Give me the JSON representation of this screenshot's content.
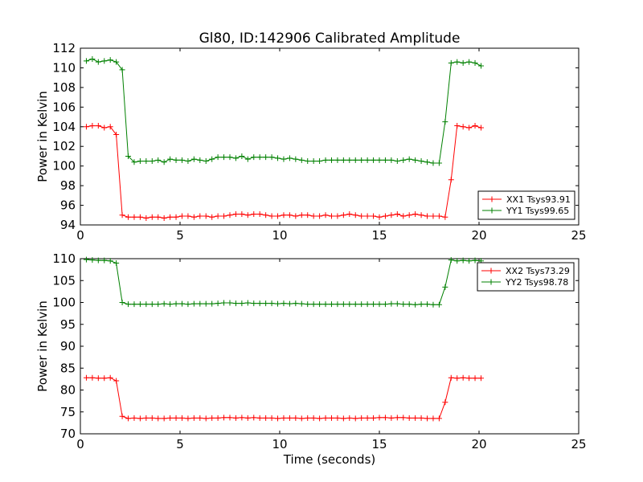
{
  "title": "Gl80, ID:142906 Calibrated Amplitude",
  "colors": {
    "red": "#ff0000",
    "green": "#008000"
  },
  "chart_data": [
    {
      "type": "line",
      "title": "Gl80, ID:142906 Calibrated Amplitude",
      "xlabel": "",
      "ylabel": "Power in Kelvin",
      "xlim": [
        0,
        25
      ],
      "ylim": [
        94,
        112
      ],
      "xticks": [
        "0",
        "5",
        "10",
        "15",
        "20",
        "25"
      ],
      "yticks": [
        "94",
        "96",
        "98",
        "100",
        "102",
        "104",
        "106",
        "108",
        "110",
        "112"
      ],
      "grid": false,
      "legend_position": "lower-right",
      "series": [
        {
          "name": "XX1 Tsys93.91",
          "color": "#ff0000",
          "x": [
            0.3,
            0.6,
            0.9,
            1.2,
            1.5,
            1.8,
            2.1,
            2.4,
            2.7,
            3.0,
            3.3,
            3.6,
            3.9,
            4.2,
            4.5,
            4.8,
            5.1,
            5.4,
            5.7,
            6.0,
            6.3,
            6.6,
            6.9,
            7.2,
            7.5,
            7.8,
            8.1,
            8.4,
            8.7,
            9.0,
            9.3,
            9.6,
            9.9,
            10.2,
            10.5,
            10.8,
            11.1,
            11.4,
            11.7,
            12.0,
            12.3,
            12.6,
            12.9,
            13.2,
            13.5,
            13.8,
            14.1,
            14.4,
            14.7,
            15.0,
            15.3,
            15.6,
            15.9,
            16.2,
            16.5,
            16.8,
            17.1,
            17.4,
            17.7,
            18.0,
            18.3,
            18.6,
            18.9,
            19.2,
            19.5,
            19.8,
            20.1
          ],
          "y": [
            104.0,
            104.1,
            104.1,
            103.9,
            104.0,
            103.2,
            95.0,
            94.8,
            94.8,
            94.8,
            94.7,
            94.8,
            94.8,
            94.7,
            94.8,
            94.8,
            94.9,
            94.9,
            94.8,
            94.9,
            94.9,
            94.8,
            94.9,
            94.9,
            95.0,
            95.1,
            95.1,
            95.0,
            95.1,
            95.1,
            95.0,
            94.9,
            94.9,
            95.0,
            95.0,
            94.9,
            95.0,
            95.0,
            94.9,
            94.9,
            95.0,
            94.9,
            94.9,
            95.0,
            95.1,
            95.0,
            94.9,
            94.9,
            94.9,
            94.8,
            94.9,
            95.0,
            95.1,
            94.9,
            95.0,
            95.1,
            95.0,
            94.9,
            94.9,
            94.9,
            94.8,
            98.6,
            104.1,
            104.0,
            103.9,
            104.1,
            103.9
          ]
        },
        {
          "name": "YY1 Tsys99.65",
          "color": "#008000",
          "x": [
            0.3,
            0.6,
            0.9,
            1.2,
            1.5,
            1.8,
            2.1,
            2.4,
            2.7,
            3.0,
            3.3,
            3.6,
            3.9,
            4.2,
            4.5,
            4.8,
            5.1,
            5.4,
            5.7,
            6.0,
            6.3,
            6.6,
            6.9,
            7.2,
            7.5,
            7.8,
            8.1,
            8.4,
            8.7,
            9.0,
            9.3,
            9.6,
            9.9,
            10.2,
            10.5,
            10.8,
            11.1,
            11.4,
            11.7,
            12.0,
            12.3,
            12.6,
            12.9,
            13.2,
            13.5,
            13.8,
            14.1,
            14.4,
            14.7,
            15.0,
            15.3,
            15.6,
            15.9,
            16.2,
            16.5,
            16.8,
            17.1,
            17.4,
            17.7,
            18.0,
            18.3,
            18.6,
            18.9,
            19.2,
            19.5,
            19.8,
            20.1
          ],
          "y": [
            110.7,
            110.9,
            110.6,
            110.7,
            110.8,
            110.6,
            109.8,
            101.0,
            100.4,
            100.5,
            100.5,
            100.5,
            100.6,
            100.4,
            100.7,
            100.6,
            100.6,
            100.5,
            100.7,
            100.6,
            100.5,
            100.7,
            100.9,
            100.9,
            100.9,
            100.8,
            101.0,
            100.7,
            100.9,
            100.9,
            100.9,
            100.9,
            100.8,
            100.7,
            100.8,
            100.7,
            100.6,
            100.5,
            100.5,
            100.5,
            100.6,
            100.6,
            100.6,
            100.6,
            100.6,
            100.6,
            100.6,
            100.6,
            100.6,
            100.6,
            100.6,
            100.6,
            100.5,
            100.6,
            100.7,
            100.6,
            100.5,
            100.4,
            100.3,
            100.3,
            104.5,
            110.5,
            110.6,
            110.5,
            110.6,
            110.5,
            110.2
          ]
        }
      ]
    },
    {
      "type": "line",
      "title": "",
      "xlabel": "Time (seconds)",
      "ylabel": "Power in Kelvin",
      "xlim": [
        0,
        25
      ],
      "ylim": [
        70,
        110
      ],
      "xticks": [
        "0",
        "5",
        "10",
        "15",
        "20",
        "25"
      ],
      "yticks": [
        "70",
        "75",
        "80",
        "85",
        "90",
        "95",
        "100",
        "105",
        "110"
      ],
      "grid": false,
      "legend_position": "upper-right",
      "series": [
        {
          "name": "XX2 Tsys73.29",
          "color": "#ff0000",
          "x": [
            0.3,
            0.6,
            0.9,
            1.2,
            1.5,
            1.8,
            2.1,
            2.4,
            2.7,
            3.0,
            3.3,
            3.6,
            3.9,
            4.2,
            4.5,
            4.8,
            5.1,
            5.4,
            5.7,
            6.0,
            6.3,
            6.6,
            6.9,
            7.2,
            7.5,
            7.8,
            8.1,
            8.4,
            8.7,
            9.0,
            9.3,
            9.6,
            9.9,
            10.2,
            10.5,
            10.8,
            11.1,
            11.4,
            11.7,
            12.0,
            12.3,
            12.6,
            12.9,
            13.2,
            13.5,
            13.8,
            14.1,
            14.4,
            14.7,
            15.0,
            15.3,
            15.6,
            15.9,
            16.2,
            16.5,
            16.8,
            17.1,
            17.4,
            17.7,
            18.0,
            18.3,
            18.6,
            18.9,
            19.2,
            19.5,
            19.8,
            20.1
          ],
          "y": [
            82.8,
            82.8,
            82.7,
            82.7,
            82.8,
            82.1,
            74.0,
            73.5,
            73.6,
            73.5,
            73.6,
            73.6,
            73.5,
            73.5,
            73.6,
            73.6,
            73.6,
            73.5,
            73.6,
            73.6,
            73.5,
            73.6,
            73.6,
            73.7,
            73.7,
            73.6,
            73.7,
            73.6,
            73.7,
            73.6,
            73.6,
            73.6,
            73.5,
            73.6,
            73.6,
            73.6,
            73.5,
            73.6,
            73.6,
            73.5,
            73.6,
            73.6,
            73.6,
            73.5,
            73.6,
            73.5,
            73.6,
            73.6,
            73.6,
            73.7,
            73.7,
            73.6,
            73.7,
            73.7,
            73.6,
            73.6,
            73.6,
            73.5,
            73.5,
            73.5,
            77.2,
            82.8,
            82.7,
            82.8,
            82.7,
            82.7,
            82.7
          ]
        },
        {
          "name": "YY2 Tsys98.78",
          "color": "#008000",
          "x": [
            0.3,
            0.6,
            0.9,
            1.2,
            1.5,
            1.8,
            2.1,
            2.4,
            2.7,
            3.0,
            3.3,
            3.6,
            3.9,
            4.2,
            4.5,
            4.8,
            5.1,
            5.4,
            5.7,
            6.0,
            6.3,
            6.6,
            6.9,
            7.2,
            7.5,
            7.8,
            8.1,
            8.4,
            8.7,
            9.0,
            9.3,
            9.6,
            9.9,
            10.2,
            10.5,
            10.8,
            11.1,
            11.4,
            11.7,
            12.0,
            12.3,
            12.6,
            12.9,
            13.2,
            13.5,
            13.8,
            14.1,
            14.4,
            14.7,
            15.0,
            15.3,
            15.6,
            15.9,
            16.2,
            16.5,
            16.8,
            17.1,
            17.4,
            17.7,
            18.0,
            18.3,
            18.6,
            18.9,
            19.2,
            19.5,
            19.8,
            20.1
          ],
          "y": [
            109.8,
            109.7,
            109.6,
            109.6,
            109.5,
            109.0,
            100.0,
            99.6,
            99.6,
            99.6,
            99.6,
            99.6,
            99.6,
            99.7,
            99.6,
            99.7,
            99.7,
            99.6,
            99.7,
            99.7,
            99.7,
            99.7,
            99.8,
            99.9,
            99.9,
            99.8,
            99.8,
            99.9,
            99.8,
            99.8,
            99.8,
            99.8,
            99.7,
            99.8,
            99.7,
            99.8,
            99.7,
            99.6,
            99.6,
            99.6,
            99.6,
            99.6,
            99.6,
            99.6,
            99.6,
            99.6,
            99.6,
            99.6,
            99.6,
            99.6,
            99.6,
            99.7,
            99.7,
            99.6,
            99.6,
            99.5,
            99.6,
            99.6,
            99.5,
            99.5,
            103.5,
            109.7,
            109.5,
            109.6,
            109.5,
            109.6,
            109.5
          ]
        }
      ]
    }
  ]
}
